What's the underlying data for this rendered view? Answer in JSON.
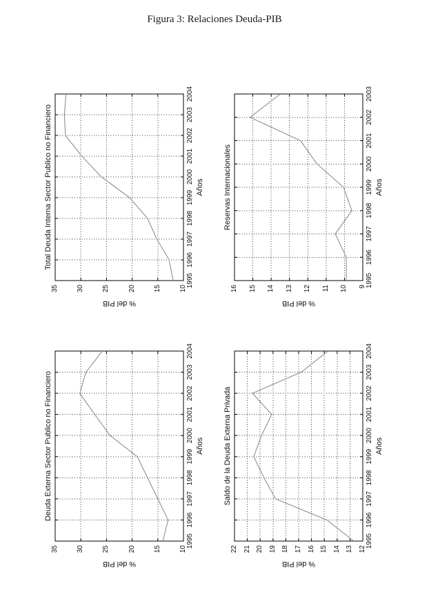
{
  "figure": {
    "caption": "Figura 3: Relaciones Deuda-PIB"
  },
  "colors": {
    "data_line": "#8f8f8f",
    "grid": "#333333",
    "axis": "#000000",
    "text": "#111111"
  },
  "chart_data": [
    {
      "type": "line",
      "title": "Total Deuda Interna Sector Publico no Financiero",
      "xlabel": "Años",
      "ylabel": "% del PIB",
      "x": [
        1995,
        1996,
        1997,
        1998,
        1999,
        2000,
        2001,
        2002,
        2003,
        2004
      ],
      "values": [
        12.0,
        12.8,
        15.2,
        17.0,
        20.5,
        26.0,
        29.8,
        33.0,
        33.2,
        32.9
      ],
      "ylim": [
        10,
        35
      ],
      "ytick_step": 5,
      "grid": true,
      "legend": "none",
      "orientation": "rotated-90-ccw"
    },
    {
      "type": "line",
      "title": "Reservas Internacionales",
      "xlabel": "Años",
      "ylabel": "% del PIB",
      "x": [
        1995,
        1996,
        1997,
        1998,
        1999,
        2000,
        2001,
        2002,
        2003
      ],
      "values": [
        9.9,
        9.9,
        10.5,
        9.6,
        10.05,
        11.5,
        12.4,
        15.15,
        13.5
      ],
      "ylim": [
        9,
        16
      ],
      "ytick_step": 1,
      "grid": true,
      "legend": "none",
      "orientation": "rotated-90-ccw"
    },
    {
      "type": "line",
      "title": "Deuda Externa Sector Publico no Financiero",
      "xlabel": "Años",
      "ylabel": "% del PIB",
      "x": [
        1995,
        1996,
        1997,
        1998,
        1999,
        2000,
        2001,
        2002,
        2003,
        2004
      ],
      "values": [
        14.0,
        13.0,
        15.0,
        17.0,
        19.0,
        24.3,
        27.3,
        30.2,
        29.0,
        25.8
      ],
      "ylim": [
        10,
        35
      ],
      "ytick_step": 5,
      "grid": true,
      "legend": "none",
      "orientation": "rotated-90-ccw"
    },
    {
      "type": "line",
      "title": "Saldo de la Deuda Externa Privada",
      "xlabel": "Años",
      "ylabel": "% del PIB",
      "x": [
        1995,
        1996,
        1997,
        1998,
        1999,
        2000,
        2001,
        2002,
        2003,
        2004
      ],
      "values": [
        12.7,
        14.8,
        18.8,
        19.7,
        20.5,
        19.9,
        19.1,
        20.6,
        16.8,
        14.7
      ],
      "ylim": [
        12,
        22
      ],
      "ytick_step": 1,
      "grid": true,
      "legend": "none",
      "orientation": "rotated-90-ccw"
    }
  ]
}
